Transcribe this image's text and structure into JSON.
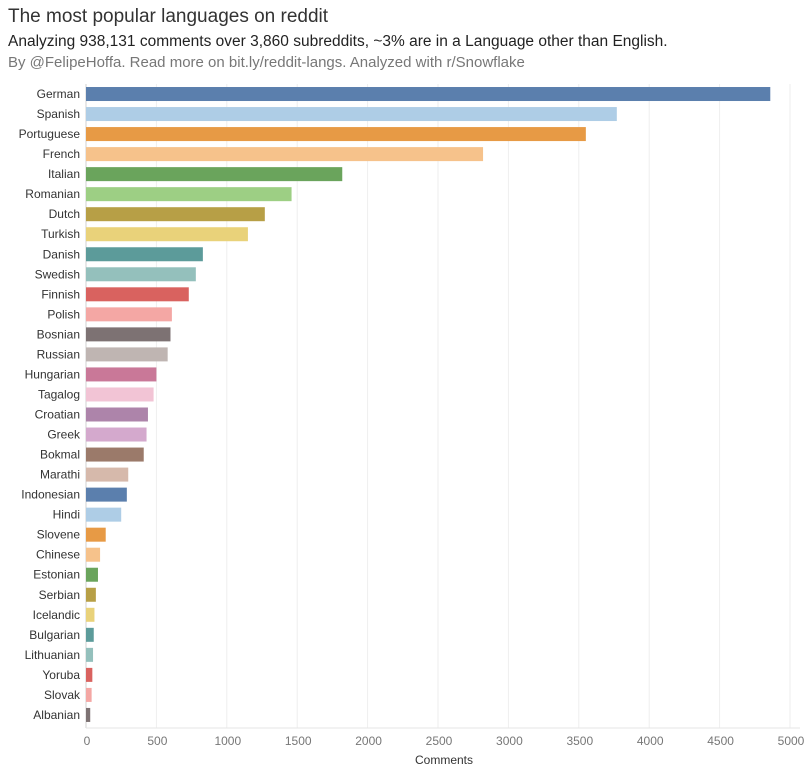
{
  "header": {
    "title": "The most popular languages on reddit",
    "subtitle": "Analyzing 938,131 comments over 3,860 subreddits, ~3% are in a Language other than English.",
    "byline": "By @FelipeHoffa. Read more on bit.ly/reddit-langs.  Analyzed with r/Snowflake"
  },
  "chart_data": {
    "type": "bar",
    "orientation": "horizontal",
    "xlabel": "Comments",
    "xlim": [
      0,
      5000
    ],
    "xticks": [
      0,
      500,
      1000,
      1500,
      2000,
      2500,
      3000,
      3500,
      4000,
      4500,
      5000
    ],
    "grid": true,
    "categories": [
      "German",
      "Spanish",
      "Portuguese",
      "French",
      "Italian",
      "Romanian",
      "Dutch",
      "Turkish",
      "Danish",
      "Swedish",
      "Finnish",
      "Polish",
      "Bosnian",
      "Russian",
      "Hungarian",
      "Tagalog",
      "Croatian",
      "Greek",
      "Bokmal",
      "Marathi",
      "Indonesian",
      "Hindi",
      "Slovene",
      "Chinese",
      "Estonian",
      "Serbian",
      "Icelandic",
      "Bulgarian",
      "Lithuanian",
      "Yoruba",
      "Slovak",
      "Albanian"
    ],
    "values": [
      4860,
      3770,
      3550,
      2820,
      1820,
      1460,
      1270,
      1150,
      830,
      780,
      730,
      610,
      600,
      580,
      500,
      480,
      440,
      430,
      410,
      300,
      290,
      250,
      140,
      100,
      85,
      70,
      60,
      55,
      50,
      45,
      40,
      30
    ],
    "colors": [
      "#5b7fad",
      "#aecde6",
      "#e79a45",
      "#f6c28b",
      "#6aa45c",
      "#9dcf84",
      "#b79f46",
      "#e9d27a",
      "#5c9b9a",
      "#94c0bc",
      "#d9625f",
      "#f4a7a4",
      "#7d7273",
      "#bfb5b2",
      "#c97898",
      "#f2c4d5",
      "#ad84aa",
      "#d4a9cd",
      "#9b7a6a",
      "#d6b9ab",
      "#5b7fad",
      "#aecde6",
      "#e79a45",
      "#f6c28b",
      "#6aa45c",
      "#b79f46",
      "#e9d27a",
      "#5c9b9a",
      "#94c0bc",
      "#d9625f",
      "#f4a7a4",
      "#7d7273"
    ]
  }
}
